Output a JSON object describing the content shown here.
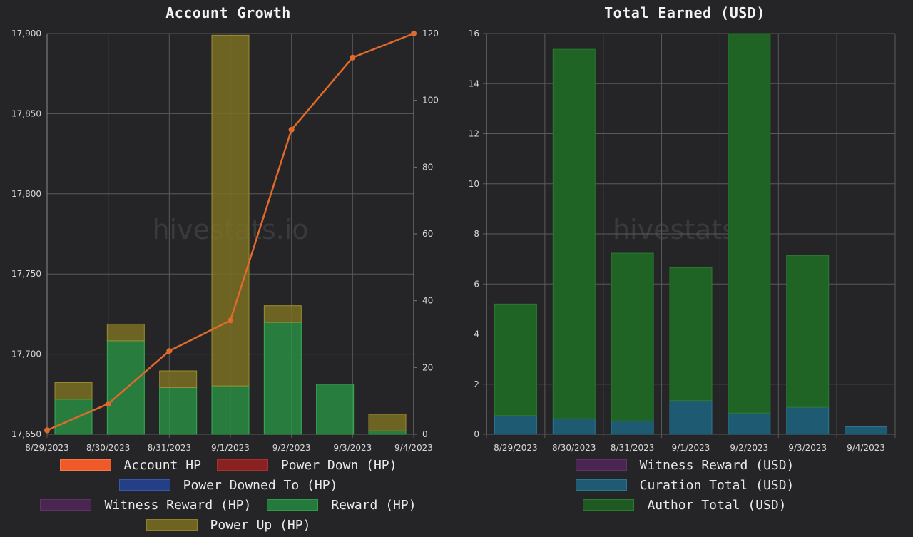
{
  "watermark": "hivestats.io",
  "chart_data": [
    {
      "type": "bar",
      "title": "Account Growth",
      "categories": [
        "8/29/2023",
        "8/30/2023",
        "8/31/2023",
        "9/1/2023",
        "9/2/2023",
        "9/3/2023",
        "9/4/2023"
      ],
      "y_left": {
        "ticks": [
          "17,650",
          "17,700",
          "17,750",
          "17,800",
          "17,850",
          "17,900"
        ],
        "ylim": [
          17650,
          17900
        ]
      },
      "y_right": {
        "ticks": [
          "0",
          "20",
          "40",
          "60",
          "80",
          "100",
          "120"
        ],
        "ylim": [
          0,
          120
        ]
      },
      "grid": true,
      "line_series": {
        "name": "Account HP",
        "axis": "left",
        "color": "#e06a2c",
        "values": [
          17652.5,
          17669,
          17702,
          17721,
          17840,
          17885,
          17900
        ]
      },
      "bar_series": [
        {
          "name": "Reward (HP)",
          "axis": "right",
          "color": "#2a9a47",
          "values": [
            10.5,
            28,
            14,
            14.5,
            33.5,
            15,
            1
          ]
        },
        {
          "name": "Power Up (HP)",
          "axis": "right",
          "color": "#7a7024",
          "values": [
            5,
            5,
            5,
            105,
            5,
            0,
            5
          ]
        }
      ],
      "legend": [
        {
          "label": "Account HP",
          "color": "#f05a28",
          "border": "#f47a48"
        },
        {
          "label": "Power Down (HP)",
          "color": "#8b2020",
          "border": "#a83030"
        },
        {
          "label": "Power Downed To (HP)",
          "color": "#243f86",
          "border": "#3457b0"
        },
        {
          "label": "Witness Reward (HP)",
          "color": "#4a2552",
          "border": "#5f3468"
        },
        {
          "label": "Reward (HP)",
          "color": "#237a3c",
          "border": "#2f9a4c"
        },
        {
          "label": "Power Up (HP)",
          "color": "#6e6420",
          "border": "#8c802c"
        }
      ],
      "legend_position": "bottom"
    },
    {
      "type": "bar",
      "stacked": true,
      "title": "Total Earned (USD)",
      "categories": [
        "8/29/2023",
        "8/30/2023",
        "8/31/2023",
        "9/1/2023",
        "9/2/2023",
        "9/3/2023",
        "9/4/2023"
      ],
      "y": {
        "ticks": [
          "0",
          "2",
          "4",
          "6",
          "8",
          "10",
          "12",
          "14",
          "16"
        ],
        "ylim": [
          0,
          16
        ]
      },
      "grid": true,
      "series": [
        {
          "name": "Witness Reward (USD)",
          "color": "#4a2552",
          "values": [
            0,
            0,
            0,
            0,
            0,
            0,
            0
          ]
        },
        {
          "name": "Curation Total (USD)",
          "color": "#1f5a73",
          "values": [
            0.75,
            0.62,
            0.53,
            1.35,
            0.85,
            1.08,
            0.3
          ]
        },
        {
          "name": "Author Total (USD)",
          "color": "#1f6424",
          "values": [
            4.45,
            14.75,
            6.7,
            5.3,
            15.15,
            6.05,
            0
          ]
        }
      ],
      "legend": [
        {
          "label": "Witness Reward (USD)",
          "color": "#4a2552",
          "border": "#5f3468"
        },
        {
          "label": "Curation Total (USD)",
          "color": "#1f5a73",
          "border": "#2c7592"
        },
        {
          "label": "Author Total (USD)",
          "color": "#1f5a23",
          "border": "#2a7a30"
        }
      ],
      "legend_position": "bottom"
    }
  ]
}
